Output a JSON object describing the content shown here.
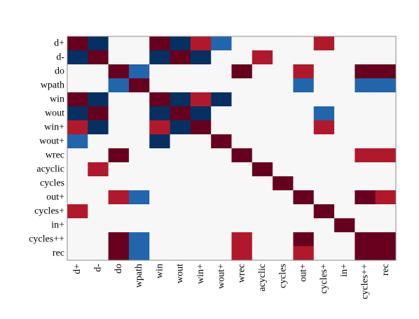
{
  "chart_data": {
    "type": "heatmap",
    "title": "",
    "xlabel": "",
    "ylabel": "",
    "grid": false,
    "legend": "none",
    "row_labels": [
      "d+",
      "d-",
      "do",
      "wpath",
      "win",
      "wout",
      "win+",
      "wout+",
      "wrec",
      "acyclic",
      "cycles",
      "out+",
      "cycles+",
      "in+",
      "cycles++",
      "rec"
    ],
    "col_labels": [
      "d+",
      "d-",
      "do",
      "wpath",
      "win",
      "wout",
      "win+",
      "wout+",
      "wrec",
      "acyclic",
      "cycles",
      "out+",
      "cycles+",
      "in+",
      "cycles++",
      "rec"
    ],
    "value_range": [
      -1,
      1
    ],
    "matrix": [
      [
        1,
        -1,
        0,
        0,
        1,
        -1,
        0.7,
        -0.6,
        0,
        0,
        0,
        0,
        0.7,
        0,
        0,
        0
      ],
      [
        -1,
        1,
        0,
        0,
        -1,
        1,
        -1,
        0,
        0,
        0.7,
        0,
        0,
        0,
        0,
        0,
        0
      ],
      [
        0,
        0,
        1,
        -0.6,
        0,
        0,
        0,
        0,
        1,
        0,
        0,
        0.7,
        0,
        0,
        1,
        1
      ],
      [
        0,
        0,
        -0.6,
        1,
        0,
        0,
        0,
        0,
        0,
        0,
        0,
        -0.6,
        0,
        0,
        -0.6,
        -0.6
      ],
      [
        1,
        -1,
        0,
        0,
        1,
        -1,
        0.7,
        -1,
        0,
        0,
        0,
        0,
        0,
        0,
        0,
        0
      ],
      [
        -1,
        1,
        0,
        0,
        -1,
        1,
        -1,
        0,
        0,
        0,
        0,
        0,
        -0.6,
        0,
        0,
        0
      ],
      [
        0.7,
        -1,
        0,
        0,
        0.7,
        -1,
        1,
        0,
        0,
        0,
        0,
        0,
        0.7,
        0,
        0,
        0
      ],
      [
        -0.6,
        0,
        0,
        0,
        -1,
        0,
        0,
        1,
        0,
        0,
        0,
        0,
        0,
        0,
        0,
        0
      ],
      [
        0,
        0,
        1,
        0,
        0,
        0,
        0,
        0,
        1,
        0,
        0,
        0,
        0,
        0,
        0.7,
        0.7
      ],
      [
        0,
        0.7,
        0,
        0,
        0,
        0,
        0,
        0,
        0,
        1,
        0,
        0,
        0,
        0,
        0,
        0
      ],
      [
        0,
        0,
        0,
        0,
        0,
        0,
        0,
        0,
        0,
        0,
        1,
        0,
        0,
        0,
        0,
        0
      ],
      [
        0,
        0,
        0.7,
        -0.6,
        0,
        0,
        0,
        0,
        0,
        0,
        0,
        1,
        0,
        0,
        1,
        0.7
      ],
      [
        0.7,
        0,
        0,
        0,
        0,
        0,
        0,
        0,
        0,
        0,
        0,
        0,
        1,
        0,
        0,
        0
      ],
      [
        0,
        0,
        0,
        0,
        0,
        0,
        0,
        0,
        0,
        0,
        0,
        0,
        0,
        1,
        0,
        0
      ],
      [
        0,
        0,
        1,
        -0.6,
        0,
        0,
        0,
        0,
        0.7,
        0,
        0,
        1,
        0,
        0,
        1,
        1
      ],
      [
        0,
        0,
        1,
        -0.6,
        0,
        0,
        0,
        0,
        0.7,
        0,
        0,
        0.7,
        0,
        0,
        1,
        1
      ]
    ]
  },
  "colors": {
    "strong_positive": "#67001f",
    "positive": "#b2182b",
    "zero": "#f7f7f7",
    "negative": "#2166ac",
    "strong_negative": "#053061",
    "frame": "#888888"
  }
}
